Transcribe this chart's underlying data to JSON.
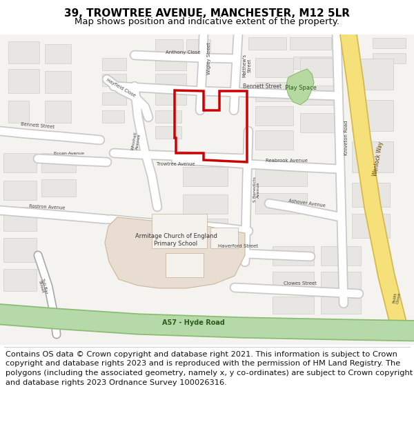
{
  "title_line1": "39, TROWTREE AVENUE, MANCHESTER, M12 5LR",
  "title_line2": "Map shows position and indicative extent of the property.",
  "footer_text": "Contains OS data © Crown copyright and database right 2021. This information is subject to Crown copyright and database rights 2023 and is reproduced with the permission of HM Land Registry. The polygons (including the associated geometry, namely x, y co-ordinates) are subject to Crown copyright and database rights 2023 Ordnance Survey 100026316.",
  "title_fontsize": 11,
  "subtitle_fontsize": 9.5,
  "footer_fontsize": 8.2,
  "bg_color": "#ffffff",
  "map_bg": "#f5f3ef",
  "road_fill": "#ffffff",
  "road_edge": "#c9c9c9",
  "building_fill": "#e8e6e2",
  "building_edge": "#d0cdc9",
  "green_road_fill": "#b5d9a8",
  "green_road_edge": "#8abb72",
  "yellow_road_fill": "#f5e07a",
  "yellow_road_edge": "#d4b84a",
  "play_fill": "#b5d9a0",
  "play_edge": "#8abb72",
  "school_fill": "#e8ddd0",
  "school_edge": "#c8b89a",
  "red_color": "#cc0000",
  "text_color": "#444444",
  "figure_width": 6.0,
  "figure_height": 6.25
}
